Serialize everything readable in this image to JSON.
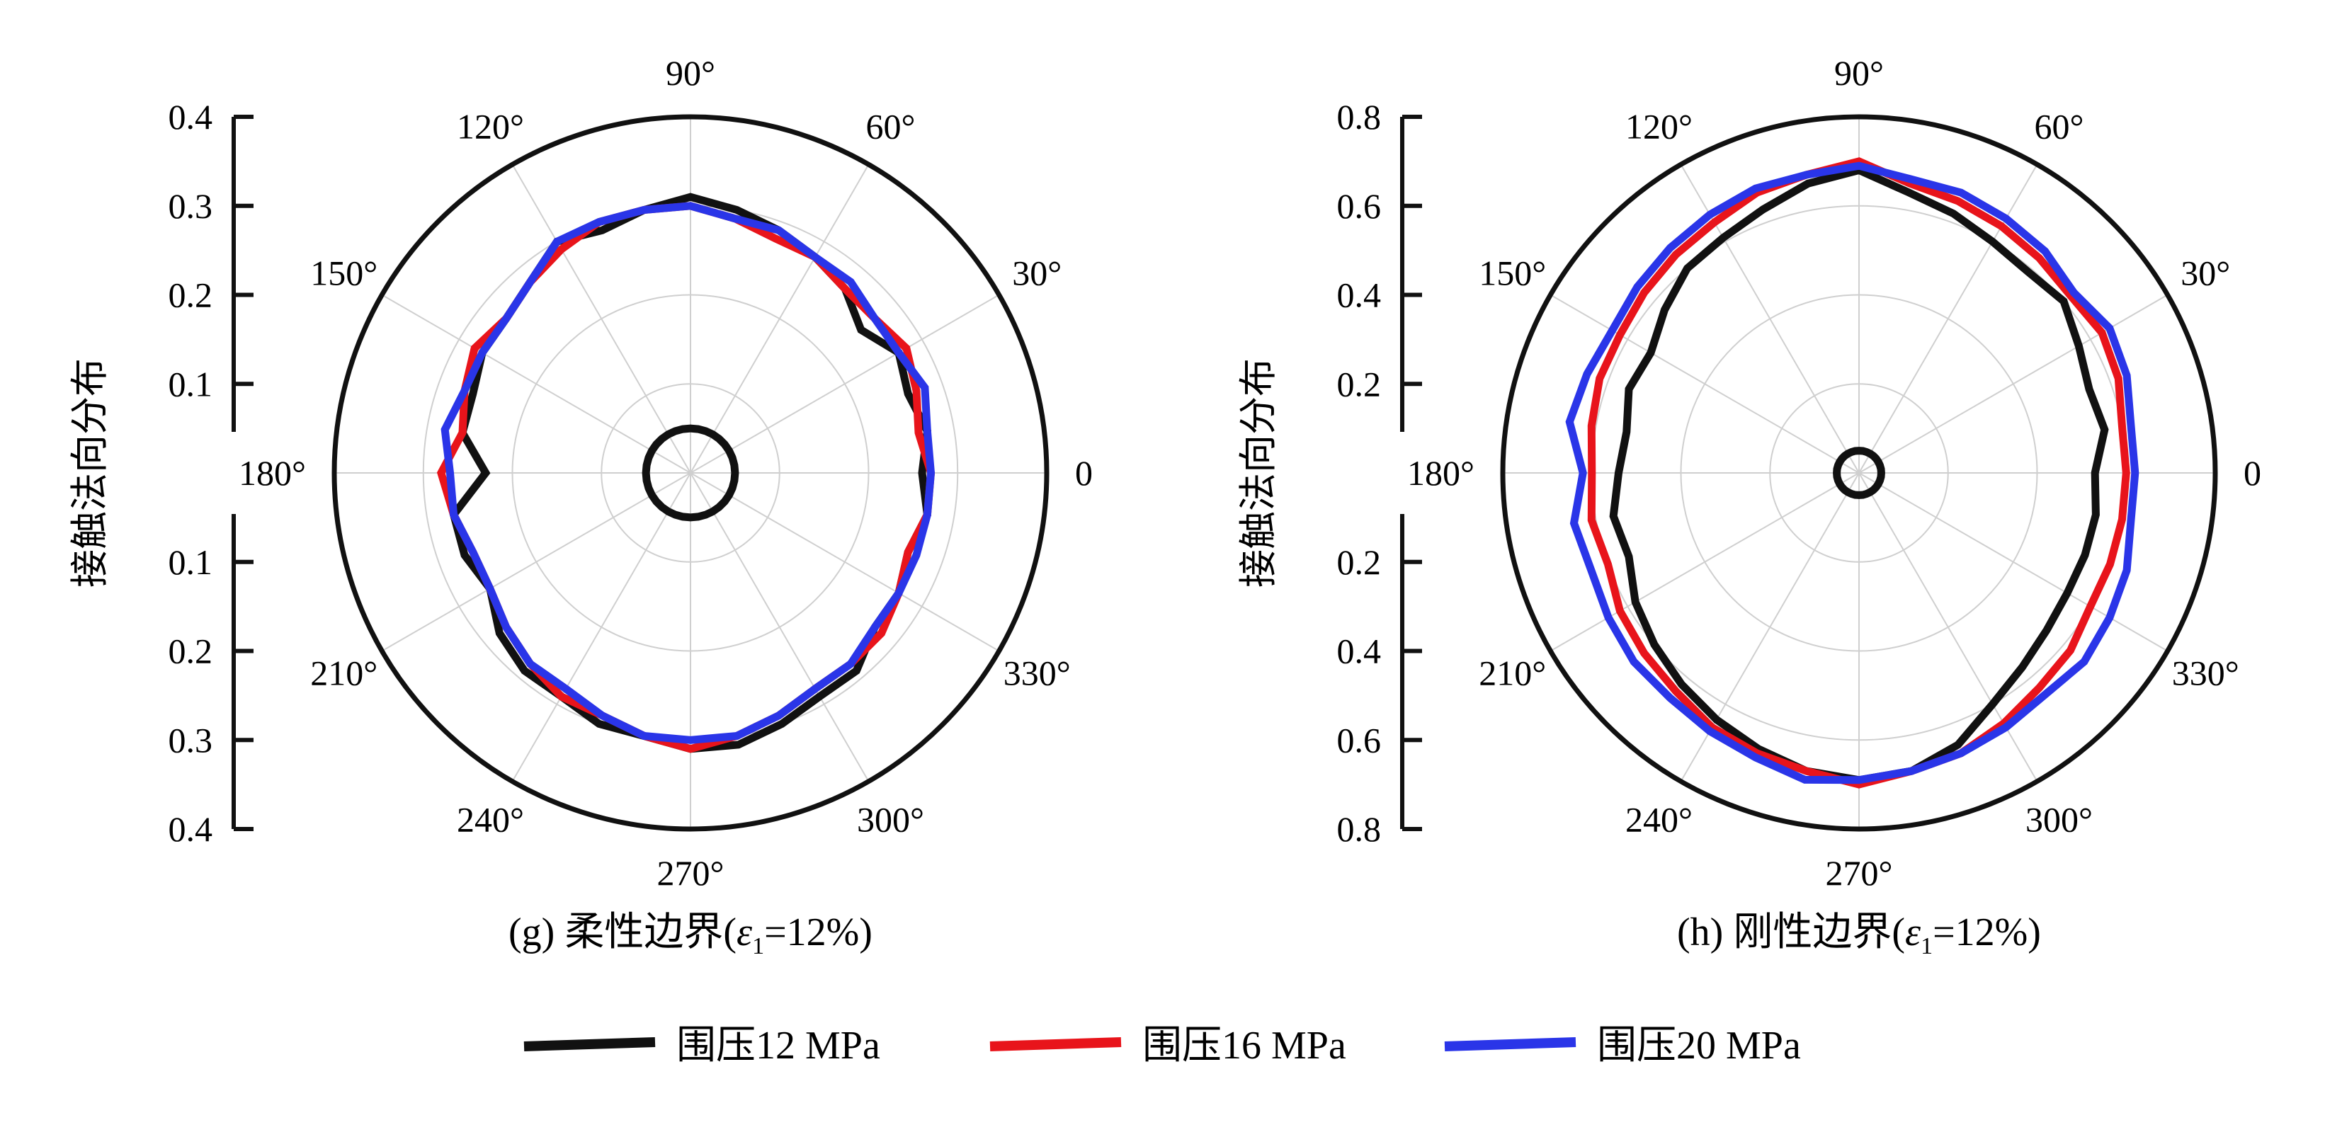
{
  "series_meta": [
    {
      "name": "围压12 MPa",
      "color": "#111111"
    },
    {
      "name": "围压16 MPa",
      "color": "#e8141b"
    },
    {
      "name": "围压20 MPa",
      "color": "#2a35e8"
    }
  ],
  "chart_data": [
    {
      "type": "polar-line",
      "panel": "g",
      "caption": {
        "prefix": "(g) 柔性边界(",
        "eps": "ε",
        "sub": "1",
        "suffix": "=12%)"
      },
      "ylabel": "接触法向分布",
      "radial_ticks": [
        "0.4",
        "0.3",
        "0.2",
        "0.1",
        "",
        "0.1",
        "0.2",
        "0.3",
        "0.4"
      ],
      "rmax": 0.4,
      "angle_labels": [
        "0",
        "30°",
        "60°",
        "90°",
        "120°",
        "150°",
        "180°",
        "210°",
        "240°",
        "270°",
        "300°",
        "330°"
      ],
      "theta_deg": [
        0,
        10,
        20,
        30,
        40,
        50,
        60,
        70,
        80,
        90,
        100,
        110,
        120,
        130,
        140,
        150,
        160,
        170,
        180,
        190,
        200,
        210,
        220,
        230,
        240,
        250,
        260,
        270,
        280,
        290,
        300,
        310,
        320,
        330,
        340,
        350
      ],
      "series": [
        {
          "name": "围压12 MPa",
          "values": [
            0.26,
            0.27,
            0.26,
            0.27,
            0.25,
            0.27,
            0.28,
            0.29,
            0.3,
            0.31,
            0.3,
            0.29,
            0.3,
            0.28,
            0.27,
            0.27,
            0.26,
            0.26,
            0.23,
            0.27,
            0.27,
            0.26,
            0.28,
            0.29,
            0.29,
            0.3,
            0.3,
            0.31,
            0.31,
            0.3,
            0.29,
            0.29,
            0.27,
            0.27,
            0.26,
            0.27
          ]
        },
        {
          "name": "围压16 MPa",
          "values": [
            0.27,
            0.26,
            0.27,
            0.28,
            0.27,
            0.27,
            0.28,
            0.28,
            0.29,
            0.3,
            0.3,
            0.3,
            0.29,
            0.28,
            0.27,
            0.28,
            0.27,
            0.26,
            0.28,
            0.27,
            0.26,
            0.26,
            0.27,
            0.28,
            0.29,
            0.29,
            0.3,
            0.31,
            0.3,
            0.29,
            0.28,
            0.28,
            0.28,
            0.27,
            0.26,
            0.27
          ]
        },
        {
          "name": "围压20 MPa",
          "values": [
            0.27,
            0.27,
            0.28,
            0.27,
            0.27,
            0.28,
            0.28,
            0.29,
            0.29,
            0.3,
            0.3,
            0.3,
            0.3,
            0.28,
            0.27,
            0.27,
            0.27,
            0.28,
            0.27,
            0.27,
            0.26,
            0.26,
            0.27,
            0.28,
            0.28,
            0.29,
            0.3,
            0.3,
            0.3,
            0.29,
            0.28,
            0.28,
            0.27,
            0.27,
            0.27,
            0.27
          ]
        },
        {
          "name": "",
          "values": [
            0.05,
            0.05,
            0.05,
            0.05,
            0.05,
            0.05,
            0.05,
            0.05,
            0.05,
            0.05,
            0.05,
            0.05,
            0.05,
            0.05,
            0.05,
            0.05,
            0.05,
            0.05,
            0.05,
            0.05,
            0.05,
            0.05,
            0.05,
            0.05,
            0.05,
            0.05,
            0.05,
            0.05,
            0.05,
            0.05,
            0.05,
            0.05,
            0.05,
            0.05,
            0.05,
            0.05
          ]
        }
      ]
    },
    {
      "type": "polar-line",
      "panel": "h",
      "caption": {
        "prefix": "(h) 刚性边界(",
        "eps": "ε",
        "sub": "1",
        "suffix": "=12%)"
      },
      "ylabel": "接触法向分布",
      "radial_ticks": [
        "0.8",
        "0.6",
        "0.4",
        "0.2",
        "",
        "0.2",
        "0.4",
        "0.6",
        "0.8"
      ],
      "rmax": 0.8,
      "angle_labels": [
        "0",
        "30°",
        "60°",
        "90°",
        "120°",
        "150°",
        "180°",
        "210°",
        "240°",
        "270°",
        "300°",
        "330°"
      ],
      "theta_deg": [
        0,
        10,
        20,
        30,
        40,
        50,
        60,
        70,
        80,
        90,
        100,
        110,
        120,
        130,
        140,
        150,
        160,
        170,
        180,
        190,
        200,
        210,
        220,
        230,
        240,
        250,
        260,
        270,
        280,
        290,
        300,
        310,
        320,
        330,
        340,
        350
      ],
      "series": [
        {
          "name": "围压12 MPa",
          "values": [
            0.53,
            0.56,
            0.55,
            0.57,
            0.6,
            0.59,
            0.6,
            0.62,
            0.64,
            0.68,
            0.66,
            0.63,
            0.61,
            0.6,
            0.57,
            0.54,
            0.55,
            0.53,
            0.54,
            0.56,
            0.55,
            0.58,
            0.6,
            0.62,
            0.64,
            0.66,
            0.68,
            0.69,
            0.68,
            0.65,
            0.6,
            0.57,
            0.55,
            0.54,
            0.54,
            0.54
          ]
        },
        {
          "name": "围压16 MPa",
          "values": [
            0.6,
            0.6,
            0.62,
            0.63,
            0.62,
            0.63,
            0.64,
            0.65,
            0.66,
            0.7,
            0.68,
            0.67,
            0.65,
            0.64,
            0.63,
            0.62,
            0.62,
            0.61,
            0.6,
            0.61,
            0.6,
            0.62,
            0.63,
            0.64,
            0.66,
            0.67,
            0.68,
            0.7,
            0.68,
            0.67,
            0.65,
            0.63,
            0.62,
            0.6,
            0.6,
            0.6
          ]
        },
        {
          "name": "围压20 MPa",
          "values": [
            0.62,
            0.62,
            0.64,
            0.65,
            0.63,
            0.65,
            0.66,
            0.67,
            0.67,
            0.69,
            0.68,
            0.68,
            0.67,
            0.66,
            0.65,
            0.64,
            0.65,
            0.66,
            0.62,
            0.65,
            0.64,
            0.65,
            0.66,
            0.66,
            0.67,
            0.68,
            0.7,
            0.69,
            0.68,
            0.67,
            0.66,
            0.65,
            0.66,
            0.65,
            0.64,
            0.62
          ]
        },
        {
          "name": "",
          "values": [
            0.05,
            0.05,
            0.05,
            0.05,
            0.05,
            0.05,
            0.05,
            0.05,
            0.05,
            0.05,
            0.05,
            0.05,
            0.05,
            0.05,
            0.05,
            0.05,
            0.05,
            0.05,
            0.05,
            0.05,
            0.05,
            0.05,
            0.05,
            0.05,
            0.05,
            0.05,
            0.05,
            0.05,
            0.05,
            0.05,
            0.05,
            0.05,
            0.05,
            0.05,
            0.05,
            0.05
          ]
        }
      ]
    }
  ]
}
